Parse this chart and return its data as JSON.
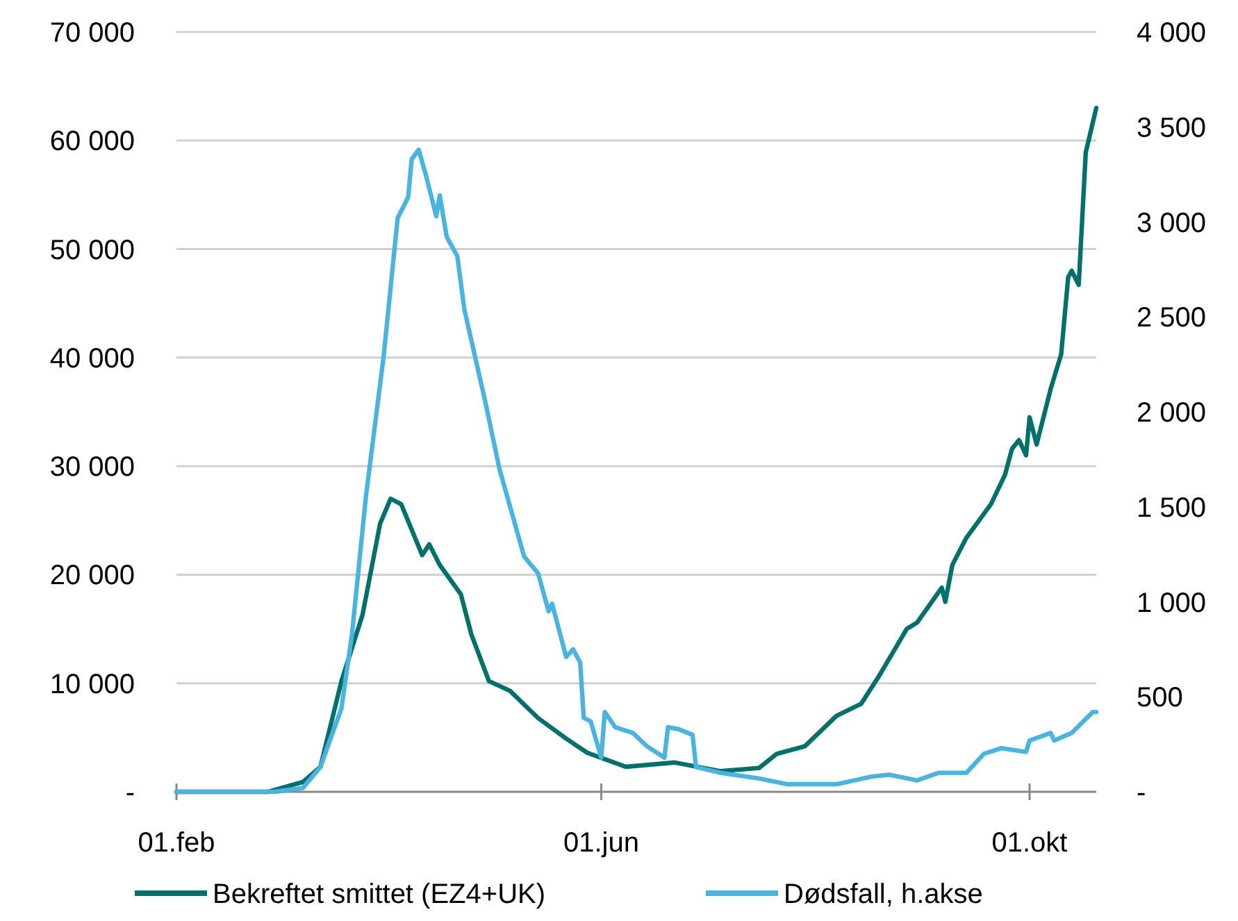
{
  "chart_data": {
    "type": "line",
    "xlim": [
      "--02-01",
      "--10-20"
    ],
    "xticks": [
      {
        "value": "--02-01",
        "label": "01.feb"
      },
      {
        "value": "--06-01",
        "label": "01.jun"
      },
      {
        "value": "--10-01",
        "label": "01.okt"
      }
    ],
    "ylim": [
      0,
      70000
    ],
    "yticks": [
      {
        "value": 0,
        "label": "-"
      },
      {
        "value": 10000,
        "label": "10 000"
      },
      {
        "value": 20000,
        "label": "20 000"
      },
      {
        "value": 30000,
        "label": "30 000"
      },
      {
        "value": 40000,
        "label": "40 000"
      },
      {
        "value": 50000,
        "label": "50 000"
      },
      {
        "value": 60000,
        "label": "60 000"
      },
      {
        "value": 70000,
        "label": "70 000"
      }
    ],
    "y2lim": [
      0,
      4000
    ],
    "y2ticks": [
      {
        "value": 0,
        "label": "-"
      },
      500,
      {
        "value": 1000,
        "label": "1 000"
      },
      {
        "value": 1500,
        "label": "1 500"
      },
      {
        "value": 2000,
        "label": "2 000"
      },
      {
        "value": 2500,
        "label": "2 500"
      },
      {
        "value": 3000,
        "label": "3 000"
      },
      {
        "value": 3500,
        "label": "3 500"
      },
      {
        "value": 4000,
        "label": "4 000"
      }
    ],
    "grid": "y",
    "legend": "bottom",
    "line_style": "solid",
    "marker": "none",
    "series": [
      {
        "name": "Bekreftet smittet (EZ4+UK)",
        "color": "#00706b",
        "x": [
          "--02-01",
          "--02-27",
          "--03-08",
          "--03-13",
          "--03-19",
          "--03-25",
          "--03-30",
          "--04-02",
          "--04-05",
          "--04-11",
          "--04-13",
          "--04-16",
          "--04-22",
          "--04-25",
          "--04-30",
          "--05-06",
          "--05-14",
          "--05-22",
          "--05-28",
          "--06-08",
          "--06-22",
          "--07-05",
          "--07-16",
          "--07-21",
          "--07-29",
          "--08-07",
          "--08-14",
          "--08-19",
          "--08-27",
          "--08-30",
          "--09-06",
          "--09-07",
          "--09-09",
          "--09-13",
          "--09-20",
          "--09-24",
          "--09-26",
          "--09-28",
          "--09-30",
          "--10-01",
          "--10-03",
          "--10-07",
          "--10-10",
          "--10-12",
          "--10-13",
          "--10-15",
          "--10-17",
          "--10-20"
        ],
        "values": [
          0,
          0,
          900,
          2300,
          10200,
          16300,
          24700,
          27000,
          26500,
          21800,
          22800,
          20900,
          18200,
          14500,
          10200,
          9300,
          6800,
          4900,
          3600,
          2300,
          2700,
          1900,
          2200,
          3500,
          4200,
          7000,
          8100,
          10600,
          15000,
          15600,
          18800,
          17500,
          20900,
          23400,
          26500,
          29200,
          31600,
          32400,
          31000,
          34500,
          32000,
          37100,
          40300,
          47400,
          48000,
          46700,
          58900,
          63000
        ]
      },
      {
        "name": "Dødsfall, h.akse",
        "color": "#4ab3e0",
        "axis": "y2",
        "x": [
          "--02-01",
          "--02-29",
          "--03-08",
          "--03-13",
          "--03-19",
          "--03-22",
          "--03-26",
          "--03-31",
          "--04-04",
          "--04-07",
          "--04-08",
          "--04-10",
          "--04-12",
          "--04-15",
          "--04-16",
          "--04-18",
          "--04-21",
          "--04-23",
          "--04-29",
          "--05-03",
          "--05-10",
          "--05-14",
          "--05-17",
          "--05-18",
          "--05-22",
          "--05-24",
          "--05-26",
          "--05-27",
          "--05-29",
          "--06-01",
          "--06-02",
          "--06-05",
          "--06-10",
          "--06-14",
          "--06-19",
          "--06-20",
          "--06-23",
          "--06-27",
          "--06-28",
          "--07-05",
          "--07-16",
          "--07-24",
          "--08-07",
          "--08-17",
          "--08-22",
          "--08-30",
          "--09-05",
          "--09-13",
          "--09-18",
          "--09-23",
          "--09-30",
          "--10-01",
          "--10-07",
          "--10-08",
          "--10-13",
          "--10-19",
          "--10-20"
        ],
        "values": [
          0,
          0,
          20,
          130,
          440,
          830,
          1560,
          2290,
          3020,
          3130,
          3330,
          3380,
          3250,
          3030,
          3140,
          2920,
          2820,
          2540,
          2050,
          1700,
          1240,
          1150,
          950,
          990,
          710,
          750,
          680,
          390,
          370,
          180,
          420,
          340,
          310,
          240,
          180,
          340,
          330,
          300,
          130,
          100,
          70,
          40,
          40,
          80,
          90,
          60,
          100,
          100,
          200,
          230,
          210,
          270,
          310,
          270,
          310,
          420,
          420
        ]
      }
    ]
  }
}
